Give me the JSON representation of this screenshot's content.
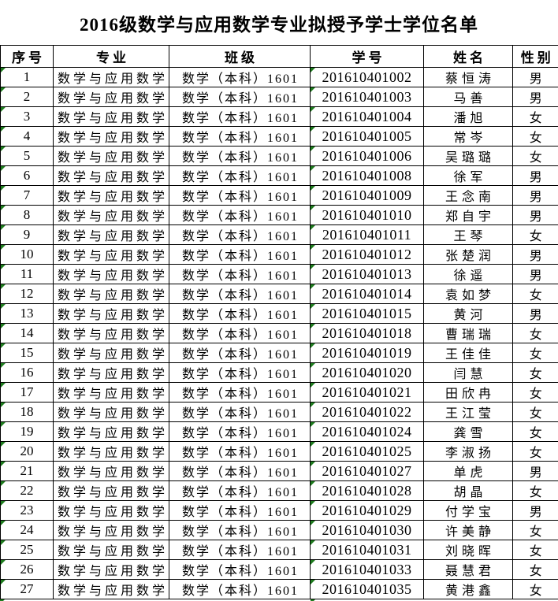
{
  "title": "2016级数学与应用数学专业拟授予学士学位名单",
  "table": {
    "headers": [
      "序号",
      "专业",
      "班级",
      "学号",
      "姓名",
      "性别"
    ],
    "rows": [
      [
        "1",
        "数学与应用数学",
        "数学（本科）1601",
        "201610401002",
        "蔡恒涛",
        "男"
      ],
      [
        "2",
        "数学与应用数学",
        "数学（本科）1601",
        "201610401003",
        "马善",
        "男"
      ],
      [
        "3",
        "数学与应用数学",
        "数学（本科）1601",
        "201610401004",
        "潘旭",
        "女"
      ],
      [
        "4",
        "数学与应用数学",
        "数学（本科）1601",
        "201610401005",
        "常岑",
        "女"
      ],
      [
        "5",
        "数学与应用数学",
        "数学（本科）1601",
        "201610401006",
        "吴璐璐",
        "女"
      ],
      [
        "6",
        "数学与应用数学",
        "数学（本科）1601",
        "201610401008",
        "徐军",
        "男"
      ],
      [
        "7",
        "数学与应用数学",
        "数学（本科）1601",
        "201610401009",
        "王念南",
        "男"
      ],
      [
        "8",
        "数学与应用数学",
        "数学（本科）1601",
        "201610401010",
        "郑自宇",
        "男"
      ],
      [
        "9",
        "数学与应用数学",
        "数学（本科）1601",
        "201610401011",
        "王琴",
        "女"
      ],
      [
        "10",
        "数学与应用数学",
        "数学（本科）1601",
        "201610401012",
        "张楚润",
        "男"
      ],
      [
        "11",
        "数学与应用数学",
        "数学（本科）1601",
        "201610401013",
        "徐遥",
        "男"
      ],
      [
        "12",
        "数学与应用数学",
        "数学（本科）1601",
        "201610401014",
        "袁如梦",
        "女"
      ],
      [
        "13",
        "数学与应用数学",
        "数学（本科）1601",
        "201610401015",
        "黄河",
        "男"
      ],
      [
        "14",
        "数学与应用数学",
        "数学（本科）1601",
        "201610401018",
        "曹瑞瑞",
        "女"
      ],
      [
        "15",
        "数学与应用数学",
        "数学（本科）1601",
        "201610401019",
        "王佳佳",
        "女"
      ],
      [
        "16",
        "数学与应用数学",
        "数学（本科）1601",
        "201610401020",
        "闫慧",
        "女"
      ],
      [
        "17",
        "数学与应用数学",
        "数学（本科）1601",
        "201610401021",
        "田欣冉",
        "女"
      ],
      [
        "18",
        "数学与应用数学",
        "数学（本科）1601",
        "201610401022",
        "王江莹",
        "女"
      ],
      [
        "19",
        "数学与应用数学",
        "数学（本科）1601",
        "201610401024",
        "龚雪",
        "女"
      ],
      [
        "20",
        "数学与应用数学",
        "数学（本科）1601",
        "201610401025",
        "李淑扬",
        "女"
      ],
      [
        "21",
        "数学与应用数学",
        "数学（本科）1601",
        "201610401027",
        "单虎",
        "男"
      ],
      [
        "22",
        "数学与应用数学",
        "数学（本科）1601",
        "201610401028",
        "胡晶",
        "女"
      ],
      [
        "23",
        "数学与应用数学",
        "数学（本科）1601",
        "201610401029",
        "付学宝",
        "男"
      ],
      [
        "24",
        "数学与应用数学",
        "数学（本科）1601",
        "201610401030",
        "许美静",
        "女"
      ],
      [
        "25",
        "数学与应用数学",
        "数学（本科）1601",
        "201610401031",
        "刘晓晖",
        "女"
      ],
      [
        "26",
        "数学与应用数学",
        "数学（本科）1601",
        "201610401033",
        "聂慧君",
        "女"
      ],
      [
        "27",
        "数学与应用数学",
        "数学（本科）1601",
        "201610401035",
        "黄港鑫",
        "女"
      ]
    ]
  },
  "icons": {
    "error_indicator": "excel-green-corner-triangle"
  },
  "colors": {
    "error_indicator_green": "#1e7c1e",
    "border": "#000000",
    "background": "#ffffff",
    "text": "#000000"
  }
}
